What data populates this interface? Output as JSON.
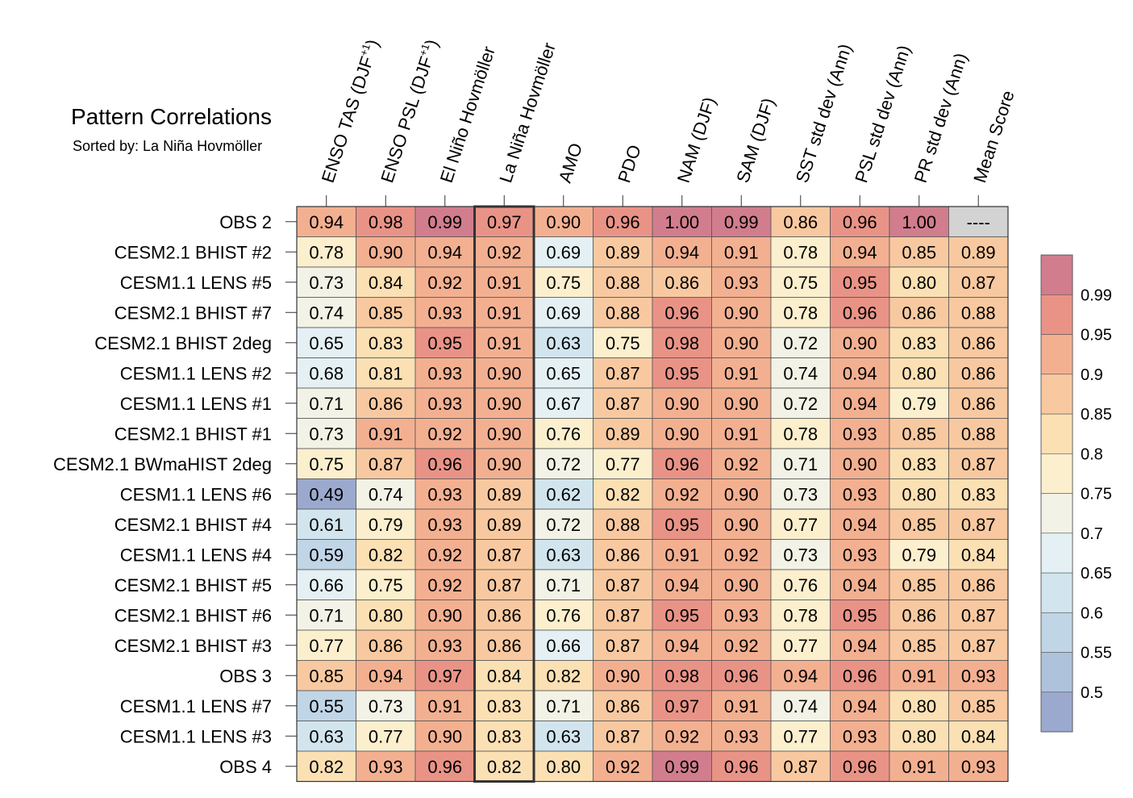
{
  "chart_data": {
    "type": "heatmap",
    "title": "Pattern Correlations",
    "subtitle": "Sorted by: La Niña Hovmöller",
    "columns": [
      "ENSO TAS (DJF+1)",
      "ENSO PSL (DJF+1)",
      "El Niño Hovmöller",
      "La Niña Hovmöller",
      "AMO",
      "PDO",
      "NAM (DJF)",
      "SAM (DJF)",
      "SST std dev (Ann)",
      "PSL std dev (Ann)",
      "PR std dev (Ann)",
      "Mean Score"
    ],
    "column_labels": [
      {
        "text": "ENSO TAS (DJF",
        "sup": "+1",
        "tail": ")"
      },
      {
        "text": "ENSO PSL (DJF",
        "sup": "+1",
        "tail": ")"
      },
      {
        "text": "El Niño Hovmöller"
      },
      {
        "text": "La Niña Hovmöller"
      },
      {
        "text": "AMO"
      },
      {
        "text": "PDO"
      },
      {
        "text": "NAM (DJF)"
      },
      {
        "text": "SAM (DJF)"
      },
      {
        "text": "SST std dev (Ann)"
      },
      {
        "text": "PSL std dev (Ann)"
      },
      {
        "text": "PR std dev (Ann)"
      },
      {
        "text": "Mean Score"
      }
    ],
    "highlight_column": "La Niña Hovmöller",
    "rows": [
      "OBS 2",
      "CESM2.1 BHIST #2",
      "CESM1.1 LENS #5",
      "CESM2.1 BHIST #7",
      "CESM2.1 BHIST 2deg",
      "CESM1.1 LENS #2",
      "CESM1.1 LENS #1",
      "CESM2.1 BHIST #1",
      "CESM2.1 BWmaHIST 2deg",
      "CESM1.1 LENS #6",
      "CESM2.1 BHIST #4",
      "CESM1.1 LENS #4",
      "CESM2.1 BHIST #5",
      "CESM2.1 BHIST #6",
      "CESM2.1 BHIST #3",
      "OBS 3",
      "CESM1.1 LENS #7",
      "CESM1.1 LENS #3",
      "OBS 4"
    ],
    "values": [
      [
        "0.94",
        "0.98",
        "0.99",
        "0.97",
        "0.90",
        "0.96",
        "1.00",
        "0.99",
        "0.86",
        "0.96",
        "1.00",
        "----"
      ],
      [
        "0.78",
        "0.90",
        "0.94",
        "0.92",
        "0.69",
        "0.89",
        "0.94",
        "0.91",
        "0.78",
        "0.94",
        "0.85",
        "0.89"
      ],
      [
        "0.73",
        "0.84",
        "0.92",
        "0.91",
        "0.75",
        "0.88",
        "0.86",
        "0.93",
        "0.75",
        "0.95",
        "0.80",
        "0.87"
      ],
      [
        "0.74",
        "0.85",
        "0.93",
        "0.91",
        "0.69",
        "0.88",
        "0.96",
        "0.90",
        "0.78",
        "0.96",
        "0.86",
        "0.88"
      ],
      [
        "0.65",
        "0.83",
        "0.95",
        "0.91",
        "0.63",
        "0.75",
        "0.98",
        "0.90",
        "0.72",
        "0.90",
        "0.83",
        "0.86"
      ],
      [
        "0.68",
        "0.81",
        "0.93",
        "0.90",
        "0.65",
        "0.87",
        "0.95",
        "0.91",
        "0.74",
        "0.94",
        "0.80",
        "0.86"
      ],
      [
        "0.71",
        "0.86",
        "0.93",
        "0.90",
        "0.67",
        "0.87",
        "0.90",
        "0.90",
        "0.72",
        "0.94",
        "0.79",
        "0.86"
      ],
      [
        "0.73",
        "0.91",
        "0.92",
        "0.90",
        "0.76",
        "0.89",
        "0.90",
        "0.91",
        "0.78",
        "0.93",
        "0.85",
        "0.88"
      ],
      [
        "0.75",
        "0.87",
        "0.96",
        "0.90",
        "0.72",
        "0.77",
        "0.96",
        "0.92",
        "0.71",
        "0.90",
        "0.83",
        "0.87"
      ],
      [
        "0.49",
        "0.74",
        "0.93",
        "0.89",
        "0.62",
        "0.82",
        "0.92",
        "0.90",
        "0.73",
        "0.93",
        "0.80",
        "0.83"
      ],
      [
        "0.61",
        "0.79",
        "0.93",
        "0.89",
        "0.72",
        "0.88",
        "0.95",
        "0.90",
        "0.77",
        "0.94",
        "0.85",
        "0.87"
      ],
      [
        "0.59",
        "0.82",
        "0.92",
        "0.87",
        "0.63",
        "0.86",
        "0.91",
        "0.92",
        "0.73",
        "0.93",
        "0.79",
        "0.84"
      ],
      [
        "0.66",
        "0.75",
        "0.92",
        "0.87",
        "0.71",
        "0.87",
        "0.94",
        "0.90",
        "0.76",
        "0.94",
        "0.85",
        "0.86"
      ],
      [
        "0.71",
        "0.80",
        "0.90",
        "0.86",
        "0.76",
        "0.87",
        "0.95",
        "0.93",
        "0.78",
        "0.95",
        "0.86",
        "0.87"
      ],
      [
        "0.77",
        "0.86",
        "0.93",
        "0.86",
        "0.66",
        "0.87",
        "0.94",
        "0.92",
        "0.77",
        "0.94",
        "0.85",
        "0.87"
      ],
      [
        "0.85",
        "0.94",
        "0.97",
        "0.84",
        "0.82",
        "0.90",
        "0.98",
        "0.96",
        "0.94",
        "0.96",
        "0.91",
        "0.93"
      ],
      [
        "0.55",
        "0.73",
        "0.91",
        "0.83",
        "0.71",
        "0.86",
        "0.97",
        "0.91",
        "0.74",
        "0.94",
        "0.80",
        "0.85"
      ],
      [
        "0.63",
        "0.77",
        "0.90",
        "0.83",
        "0.63",
        "0.87",
        "0.92",
        "0.93",
        "0.77",
        "0.93",
        "0.80",
        "0.84"
      ],
      [
        "0.82",
        "0.93",
        "0.96",
        "0.82",
        "0.80",
        "0.92",
        "0.99",
        "0.96",
        "0.87",
        "0.96",
        "0.91",
        "0.93"
      ]
    ],
    "missing_value": "----",
    "colorbar": {
      "levels": [
        0.5,
        0.55,
        0.6,
        0.65,
        0.7,
        0.75,
        0.8,
        0.85,
        0.9,
        0.95,
        0.99
      ],
      "labels": [
        "0.5",
        "0.55",
        "0.6",
        "0.65",
        "0.7",
        "0.75",
        "0.8",
        "0.85",
        "0.9",
        "0.95",
        "0.99"
      ],
      "colors": [
        "#9ca9ce",
        "#aec2dc",
        "#c0d5e6",
        "#d2e5ee",
        "#e4f0f3",
        "#f2f2e6",
        "#fbefce",
        "#fbe0b4",
        "#f8c9a0",
        "#f3b091",
        "#e99387",
        "#d17d8d"
      ],
      "missing_color": "#d3d3d3"
    }
  }
}
